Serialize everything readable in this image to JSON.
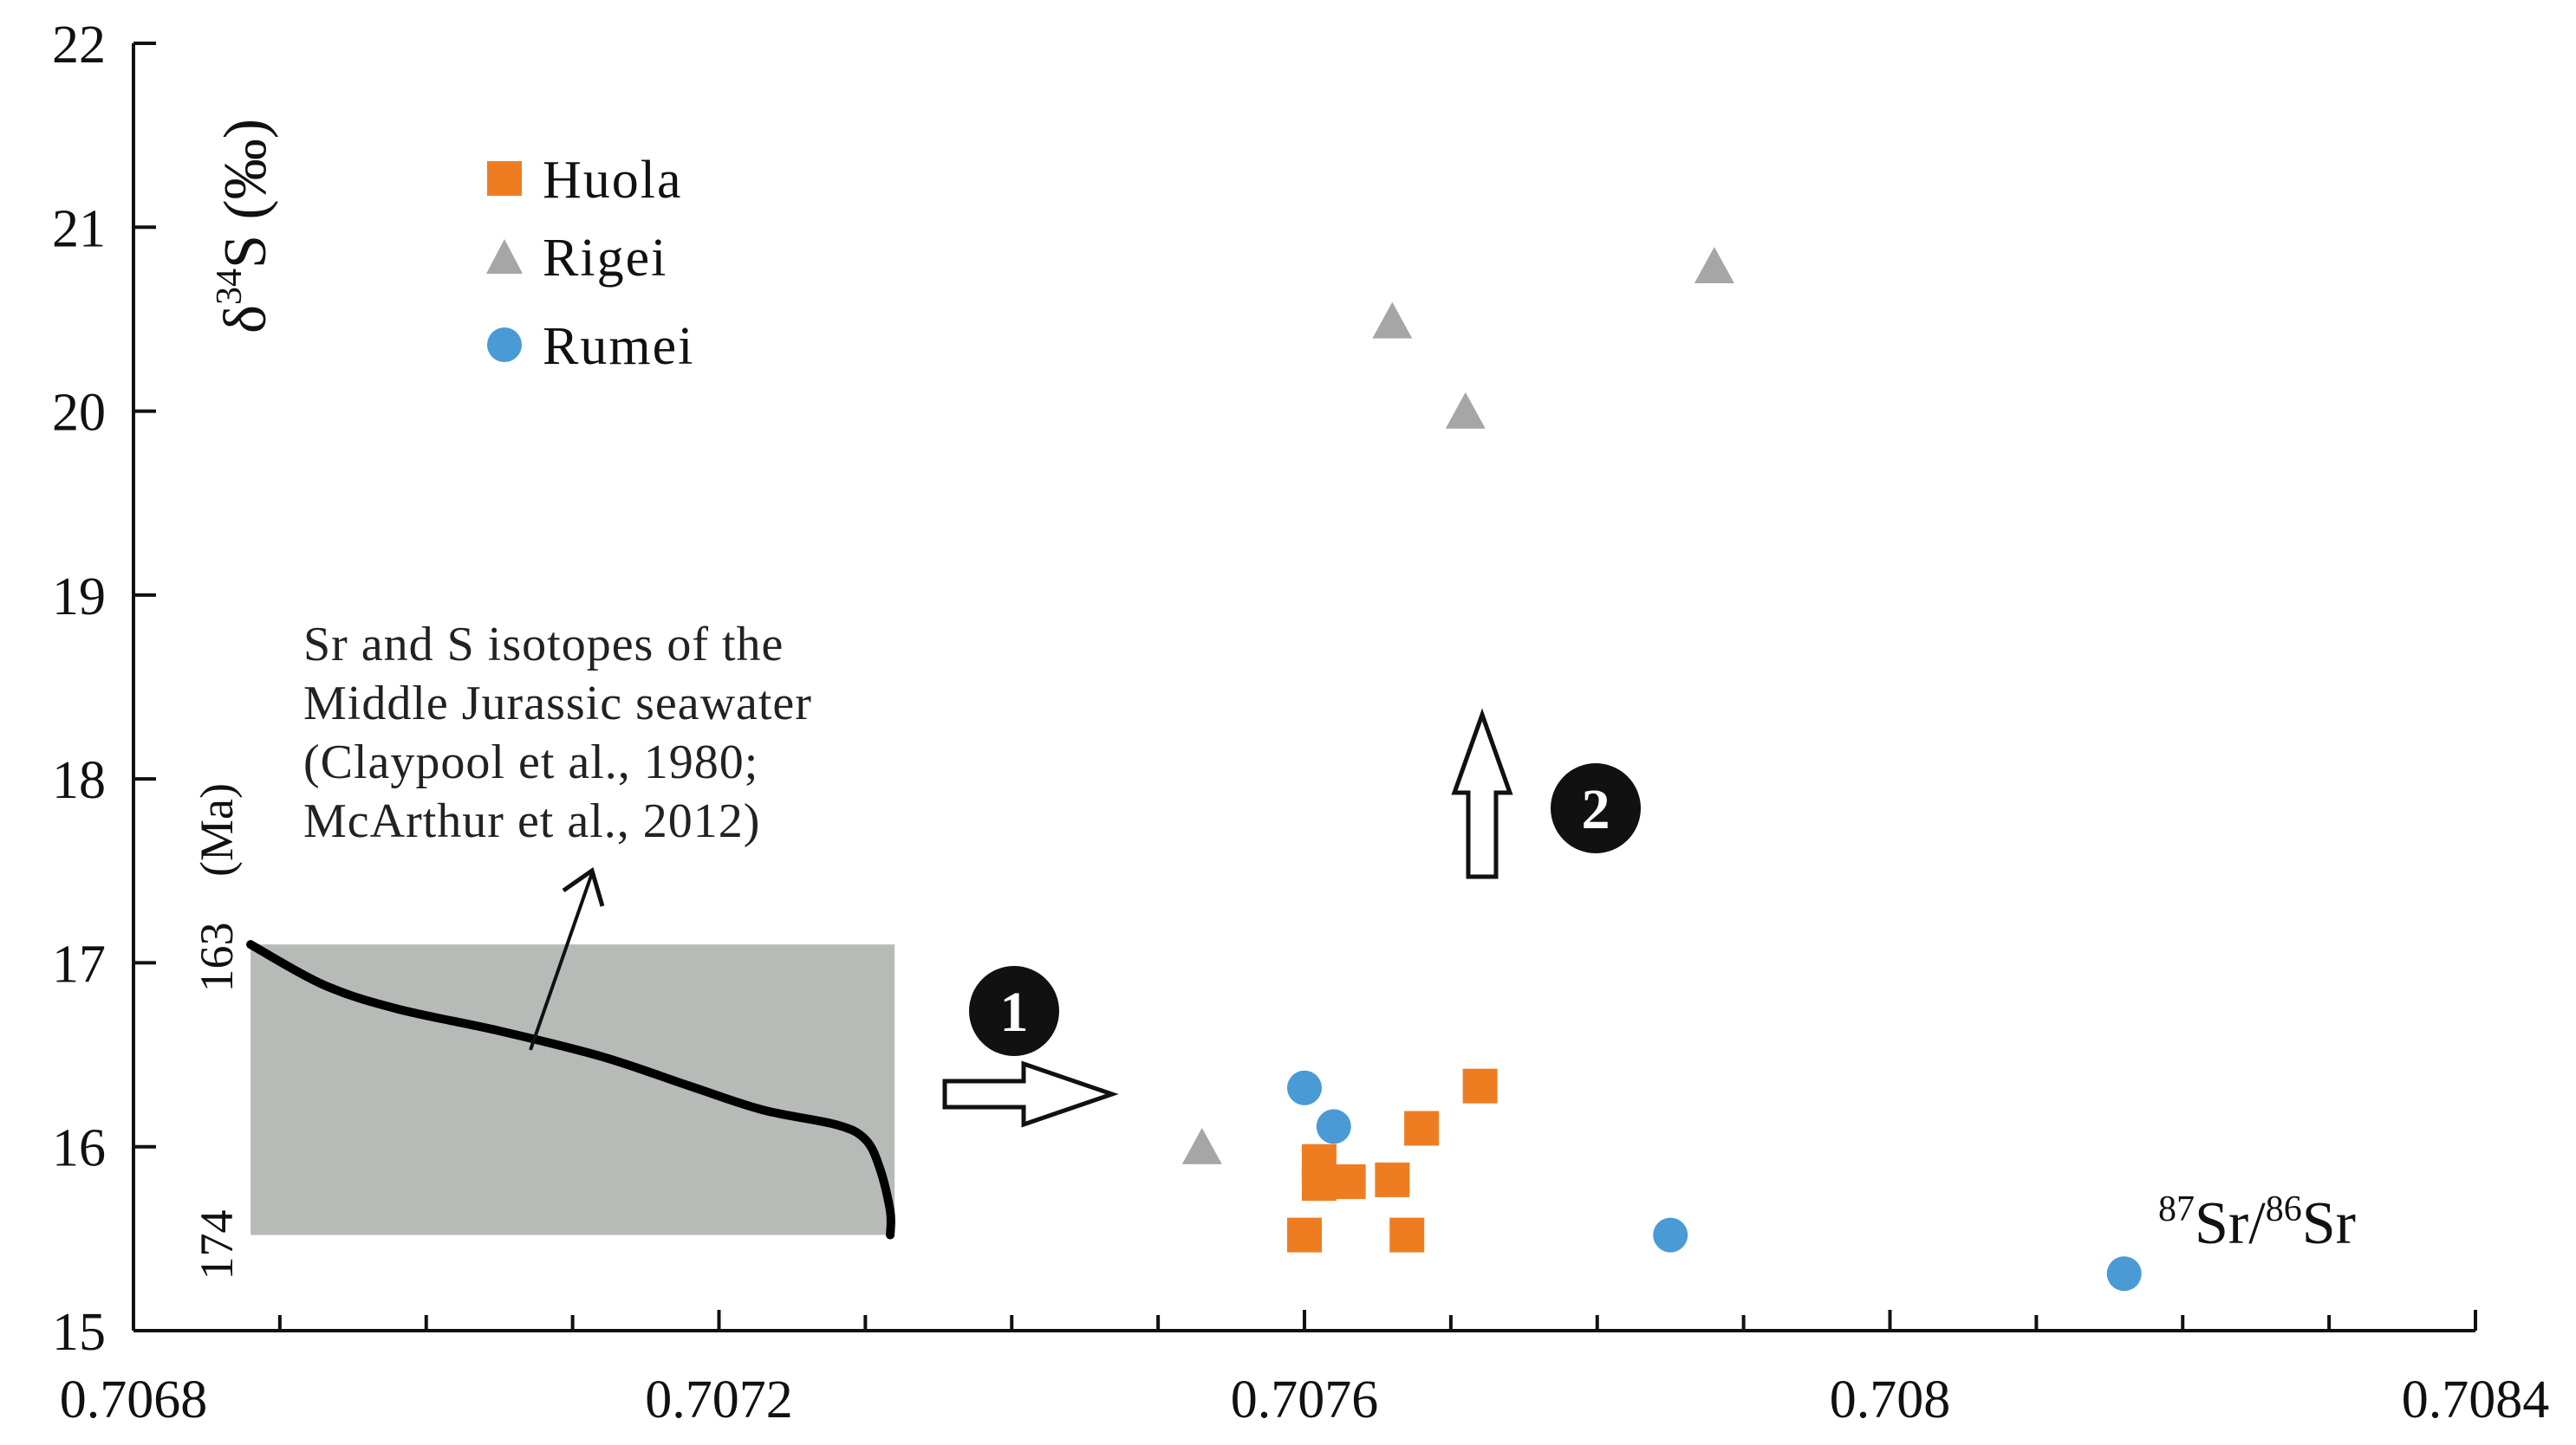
{
  "chart_data": {
    "type": "scatter",
    "xlabel": {
      "sup1": "87",
      "base1": "Sr/",
      "sup2": "86",
      "base2": "Sr"
    },
    "ylabel": {
      "prefix": "δ",
      "sup": "34",
      "suffix": "S (‰)"
    },
    "xlim": [
      0.7068,
      0.7084
    ],
    "ylim": [
      15,
      22
    ],
    "x_ticks": [
      0.7068,
      0.7072,
      0.7076,
      0.708,
      0.7084
    ],
    "x_tick_labels": [
      "0.7068",
      "0.7072",
      "0.7076",
      "0.708",
      "0.7084"
    ],
    "y_ticks": [
      15,
      16,
      17,
      18,
      19,
      20,
      21,
      22
    ],
    "y_tick_labels": [
      "15",
      "16",
      "17",
      "18",
      "19",
      "20",
      "21",
      "22"
    ],
    "grid": false,
    "legend_position": "top-left",
    "series": [
      {
        "name": "Huola",
        "marker": "square",
        "color": "#ee7d22",
        "points": [
          {
            "x": 0.7076,
            "y": 15.52
          },
          {
            "x": 0.70761,
            "y": 15.92
          },
          {
            "x": 0.70761,
            "y": 15.8
          },
          {
            "x": 0.70763,
            "y": 15.81
          },
          {
            "x": 0.70766,
            "y": 15.82
          },
          {
            "x": 0.70767,
            "y": 15.52
          },
          {
            "x": 0.70768,
            "y": 16.1
          },
          {
            "x": 0.70772,
            "y": 16.33
          }
        ]
      },
      {
        "name": "Rigei",
        "marker": "triangle",
        "color": "#a6a6a6",
        "points": [
          {
            "x": 0.70753,
            "y": 15.99
          },
          {
            "x": 0.70766,
            "y": 20.48
          },
          {
            "x": 0.70771,
            "y": 19.99
          },
          {
            "x": 0.70788,
            "y": 20.78
          }
        ]
      },
      {
        "name": "Rumei",
        "marker": "circle",
        "color": "#4a9ad6",
        "points": [
          {
            "x": 0.7076,
            "y": 16.32
          },
          {
            "x": 0.70762,
            "y": 16.11
          },
          {
            "x": 0.70785,
            "y": 15.52
          },
          {
            "x": 0.70816,
            "y": 15.31
          }
        ]
      }
    ],
    "annotations": {
      "seawater_box": {
        "x_range": [
          0.70688,
          0.70732
        ],
        "y_range": [
          15.52,
          17.1
        ],
        "color": "#b7bbb7"
      },
      "seawater_curve": [
        [
          0.70688,
          17.1
        ],
        [
          0.70693,
          16.88
        ],
        [
          0.70698,
          16.75
        ],
        [
          0.70705,
          16.63
        ],
        [
          0.70712,
          16.49
        ],
        [
          0.70718,
          16.33
        ],
        [
          0.70723,
          16.2
        ],
        [
          0.70728,
          16.12
        ],
        [
          0.7073,
          16.04
        ],
        [
          0.70731,
          15.88
        ],
        [
          0.707317,
          15.65
        ],
        [
          0.707317,
          15.52
        ]
      ],
      "age_top": "163",
      "age_unit": "(Ma)",
      "age_bottom": "174",
      "note_lines": [
        "Sr and S isotopes of the",
        "Middle Jurassic seawater",
        "(Claypool et al., 1980;",
        "McArthur et al., 2012)"
      ],
      "marker1": "1",
      "marker2": "2"
    },
    "colors": {
      "axis": "#111111",
      "huola": "#ee7d22",
      "rigei": "#a6a6a6",
      "rumei": "#4a9ad6",
      "box": "#b7bbb7"
    }
  }
}
